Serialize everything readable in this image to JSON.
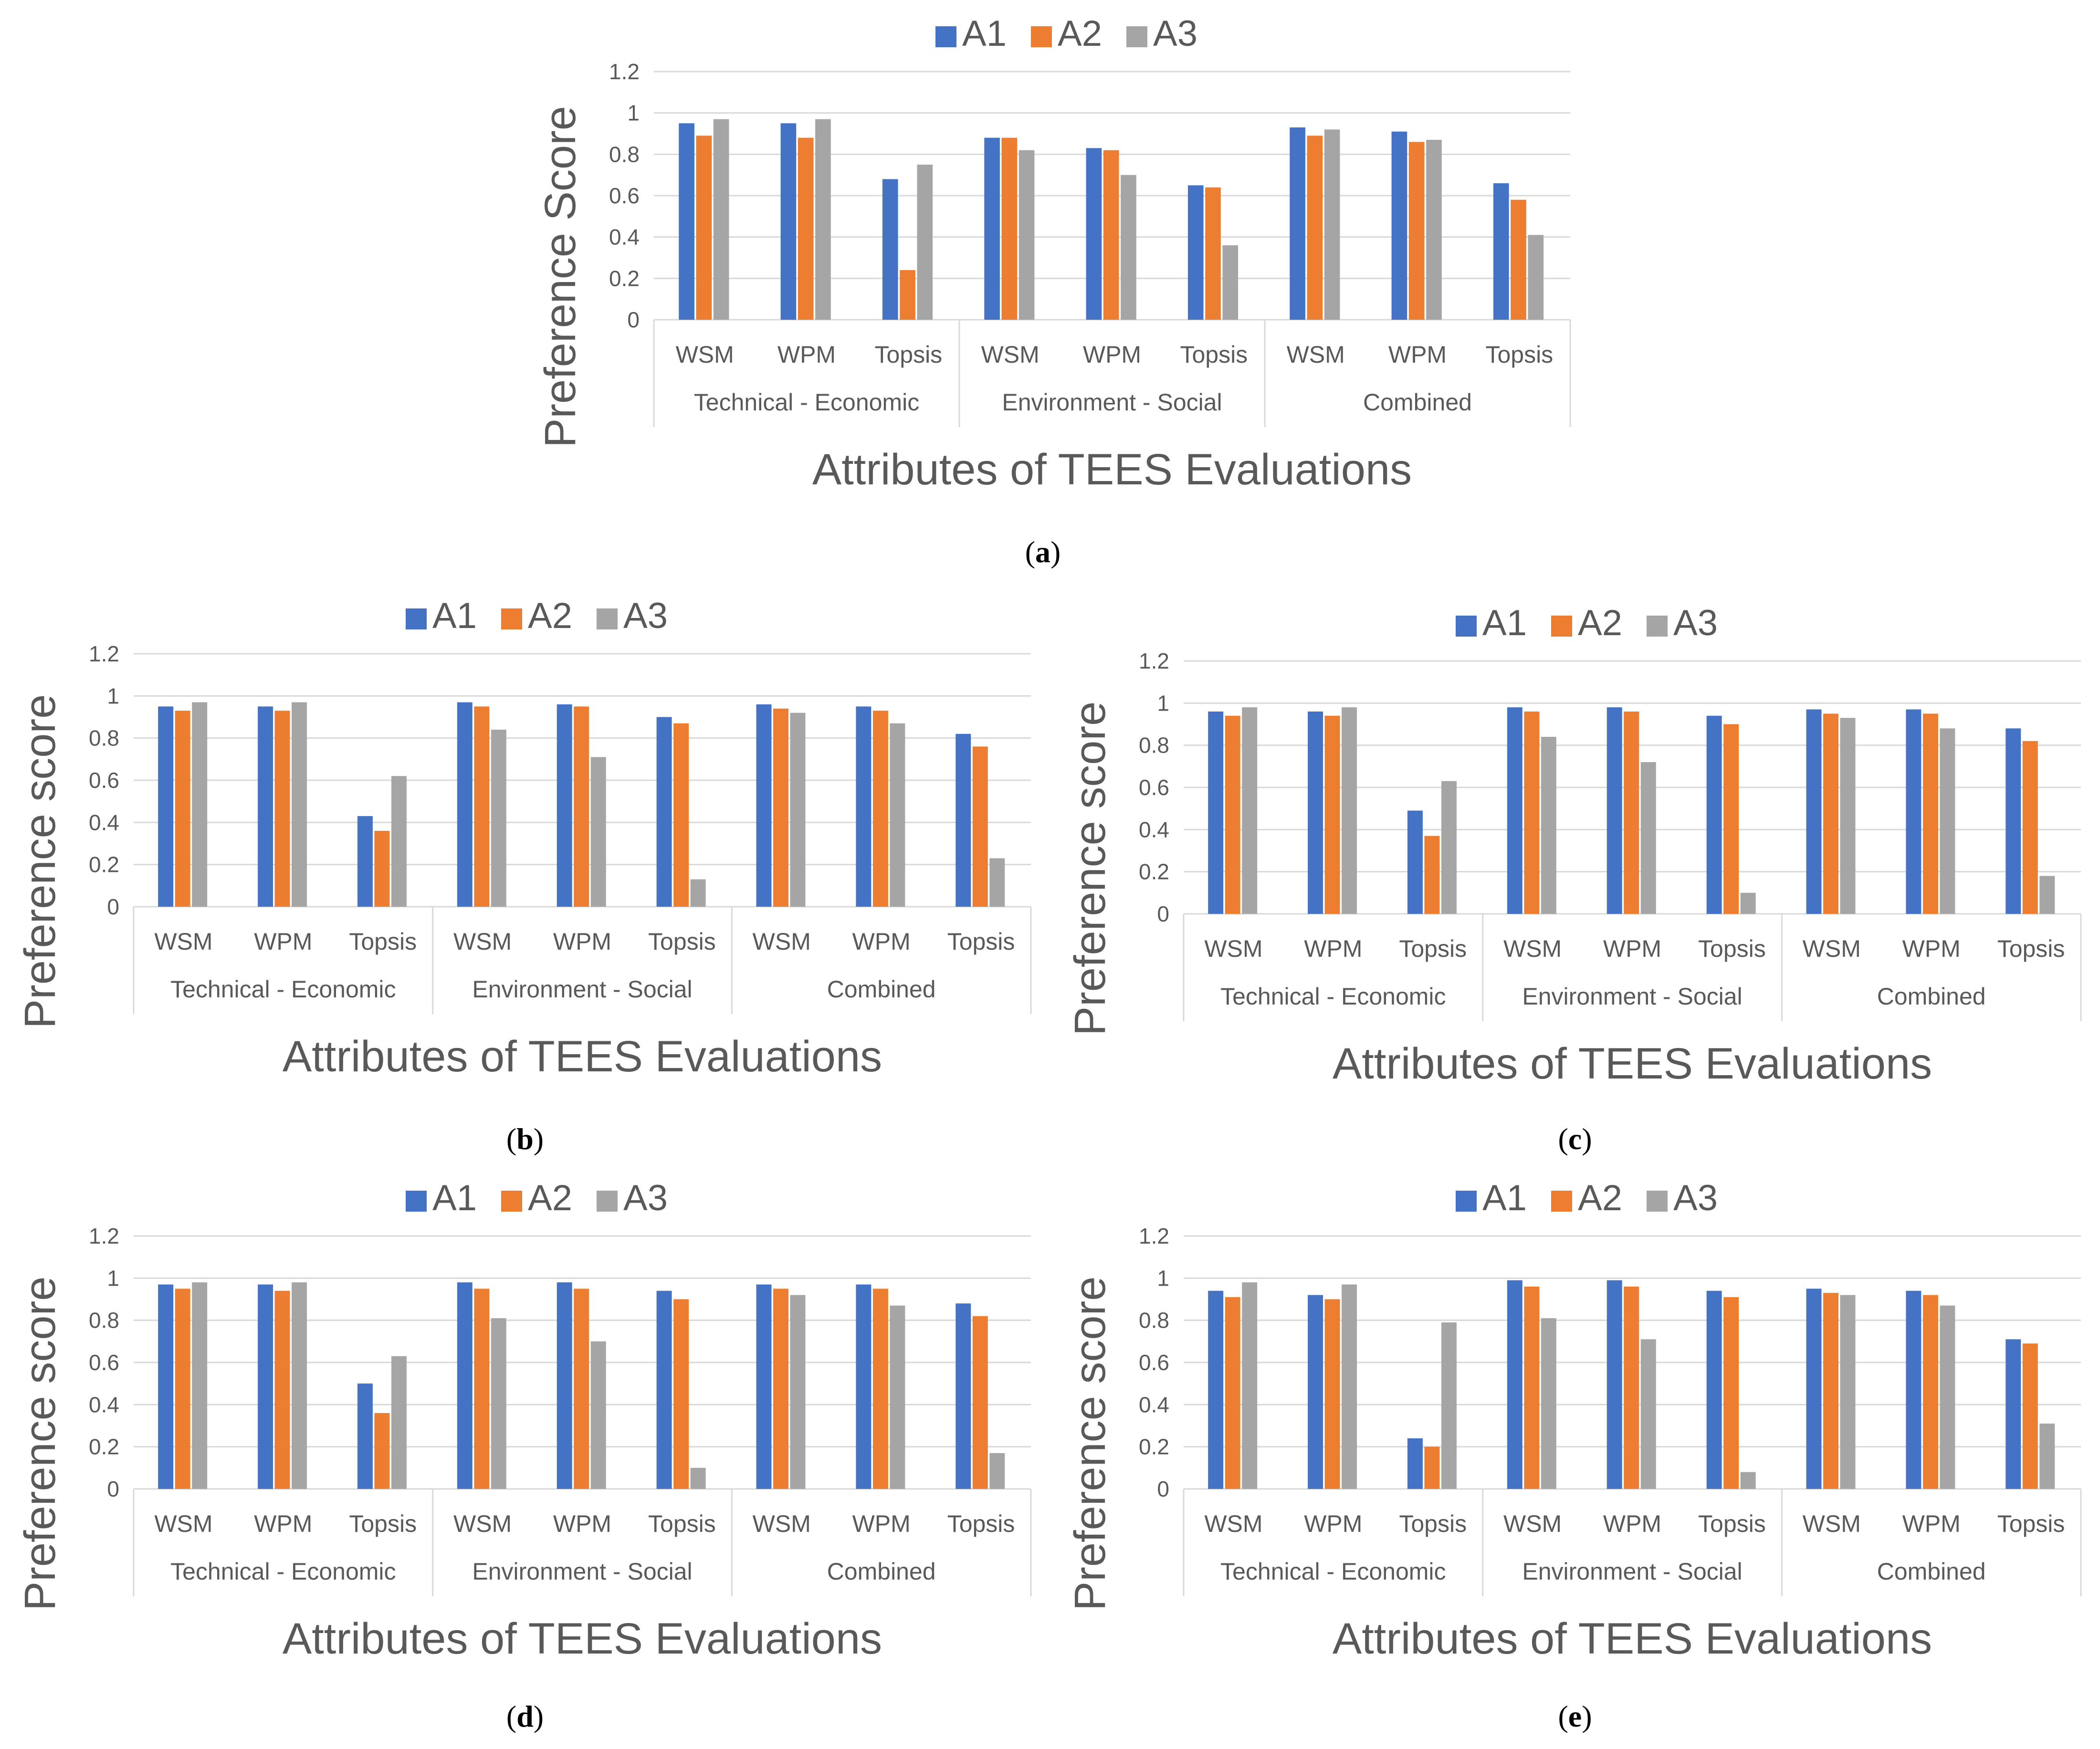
{
  "colors": {
    "A1": "#4472C4",
    "A2": "#ED7D31",
    "A3": "#A5A5A5",
    "grid": "#D9D9D9",
    "text": "#595959"
  },
  "figure": {
    "captions": [
      "a",
      "b",
      "c",
      "d",
      "e"
    ]
  },
  "chart_data": [
    {
      "panel": "a",
      "type": "bar",
      "title": "",
      "legend": [
        "A1",
        "A2",
        "A3"
      ],
      "legend_position": "top",
      "ylabel": "Preference Score",
      "xlabel": "Attributes of TEES Evaluations",
      "ylim": [
        0,
        1.2
      ],
      "yticks": [
        "0",
        "0.2",
        "0.4",
        "0.6",
        "0.8",
        "1",
        "1.2"
      ],
      "groups": [
        "Technical - Economic",
        "Environment - Social",
        "Combined"
      ],
      "categories": [
        "WSM",
        "WPM",
        "Topsis",
        "WSM",
        "WPM",
        "Topsis",
        "WSM",
        "WPM",
        "Topsis"
      ],
      "series": [
        {
          "name": "A1",
          "values": [
            0.95,
            0.95,
            0.68,
            0.88,
            0.83,
            0.65,
            0.93,
            0.91,
            0.66
          ]
        },
        {
          "name": "A2",
          "values": [
            0.89,
            0.88,
            0.24,
            0.88,
            0.82,
            0.64,
            0.89,
            0.86,
            0.58
          ]
        },
        {
          "name": "A3",
          "values": [
            0.97,
            0.97,
            0.75,
            0.82,
            0.7,
            0.36,
            0.92,
            0.87,
            0.41
          ]
        }
      ]
    },
    {
      "panel": "b",
      "type": "bar",
      "title": "",
      "legend": [
        "A1",
        "A2",
        "A3"
      ],
      "legend_position": "top",
      "ylabel": "Preference score",
      "xlabel": "Attributes of TEES Evaluations",
      "ylim": [
        0,
        1.2
      ],
      "yticks": [
        "0",
        "0.2",
        "0.4",
        "0.6",
        "0.8",
        "1",
        "1.2"
      ],
      "groups": [
        "Technical - Economic",
        "Environment - Social",
        "Combined"
      ],
      "categories": [
        "WSM",
        "WPM",
        "Topsis",
        "WSM",
        "WPM",
        "Topsis",
        "WSM",
        "WPM",
        "Topsis"
      ],
      "series": [
        {
          "name": "A1",
          "values": [
            0.95,
            0.95,
            0.43,
            0.97,
            0.96,
            0.9,
            0.96,
            0.95,
            0.82
          ]
        },
        {
          "name": "A2",
          "values": [
            0.93,
            0.93,
            0.36,
            0.95,
            0.95,
            0.87,
            0.94,
            0.93,
            0.76
          ]
        },
        {
          "name": "A3",
          "values": [
            0.97,
            0.97,
            0.62,
            0.84,
            0.71,
            0.13,
            0.92,
            0.87,
            0.23
          ]
        }
      ]
    },
    {
      "panel": "c",
      "type": "bar",
      "title": "",
      "legend": [
        "A1",
        "A2",
        "A3"
      ],
      "legend_position": "top",
      "ylabel": "Preference score",
      "xlabel": "Attributes of TEES Evaluations",
      "ylim": [
        0,
        1.2
      ],
      "yticks": [
        "0",
        "0.2",
        "0.4",
        "0.6",
        "0.8",
        "1",
        "1.2"
      ],
      "groups": [
        "Technical - Economic",
        "Environment - Social",
        "Combined"
      ],
      "categories": [
        "WSM",
        "WPM",
        "Topsis",
        "WSM",
        "WPM",
        "Topsis",
        "WSM",
        "WPM",
        "Topsis"
      ],
      "series": [
        {
          "name": "A1",
          "values": [
            0.96,
            0.96,
            0.49,
            0.98,
            0.98,
            0.94,
            0.97,
            0.97,
            0.88
          ]
        },
        {
          "name": "A2",
          "values": [
            0.94,
            0.94,
            0.37,
            0.96,
            0.96,
            0.9,
            0.95,
            0.95,
            0.82
          ]
        },
        {
          "name": "A3",
          "values": [
            0.98,
            0.98,
            0.63,
            0.84,
            0.72,
            0.1,
            0.93,
            0.88,
            0.18
          ]
        }
      ]
    },
    {
      "panel": "d",
      "type": "bar",
      "title": "",
      "legend": [
        "A1",
        "A2",
        "A3"
      ],
      "legend_position": "top",
      "ylabel": "Preference score",
      "xlabel": "Attributes of TEES Evaluations",
      "ylim": [
        0,
        1.2
      ],
      "yticks": [
        "0",
        "0.2",
        "0.4",
        "0.6",
        "0.8",
        "1",
        "1.2"
      ],
      "groups": [
        "Technical - Economic",
        "Environment - Social",
        "Combined"
      ],
      "categories": [
        "WSM",
        "WPM",
        "Topsis",
        "WSM",
        "WPM",
        "Topsis",
        "WSM",
        "WPM",
        "Topsis"
      ],
      "series": [
        {
          "name": "A1",
          "values": [
            0.97,
            0.97,
            0.5,
            0.98,
            0.98,
            0.94,
            0.97,
            0.97,
            0.88
          ]
        },
        {
          "name": "A2",
          "values": [
            0.95,
            0.94,
            0.36,
            0.95,
            0.95,
            0.9,
            0.95,
            0.95,
            0.82
          ]
        },
        {
          "name": "A3",
          "values": [
            0.98,
            0.98,
            0.63,
            0.81,
            0.7,
            0.1,
            0.92,
            0.87,
            0.17
          ]
        }
      ]
    },
    {
      "panel": "e",
      "type": "bar",
      "title": "",
      "legend": [
        "A1",
        "A2",
        "A3"
      ],
      "legend_position": "top",
      "ylabel": "Preference score",
      "xlabel": "Attributes of TEES Evaluations",
      "ylim": [
        0,
        1.2
      ],
      "yticks": [
        "0",
        "0.2",
        "0.4",
        "0.6",
        "0.8",
        "1",
        "1.2"
      ],
      "groups": [
        "Technical - Economic",
        "Environment - Social",
        "Combined"
      ],
      "categories": [
        "WSM",
        "WPM",
        "Topsis",
        "WSM",
        "WPM",
        "Topsis",
        "WSM",
        "WPM",
        "Topsis"
      ],
      "series": [
        {
          "name": "A1",
          "values": [
            0.94,
            0.92,
            0.24,
            0.99,
            0.99,
            0.94,
            0.95,
            0.94,
            0.71
          ]
        },
        {
          "name": "A2",
          "values": [
            0.91,
            0.9,
            0.2,
            0.96,
            0.96,
            0.91,
            0.93,
            0.92,
            0.69
          ]
        },
        {
          "name": "A3",
          "values": [
            0.98,
            0.97,
            0.79,
            0.81,
            0.71,
            0.08,
            0.92,
            0.87,
            0.31
          ]
        }
      ]
    }
  ]
}
